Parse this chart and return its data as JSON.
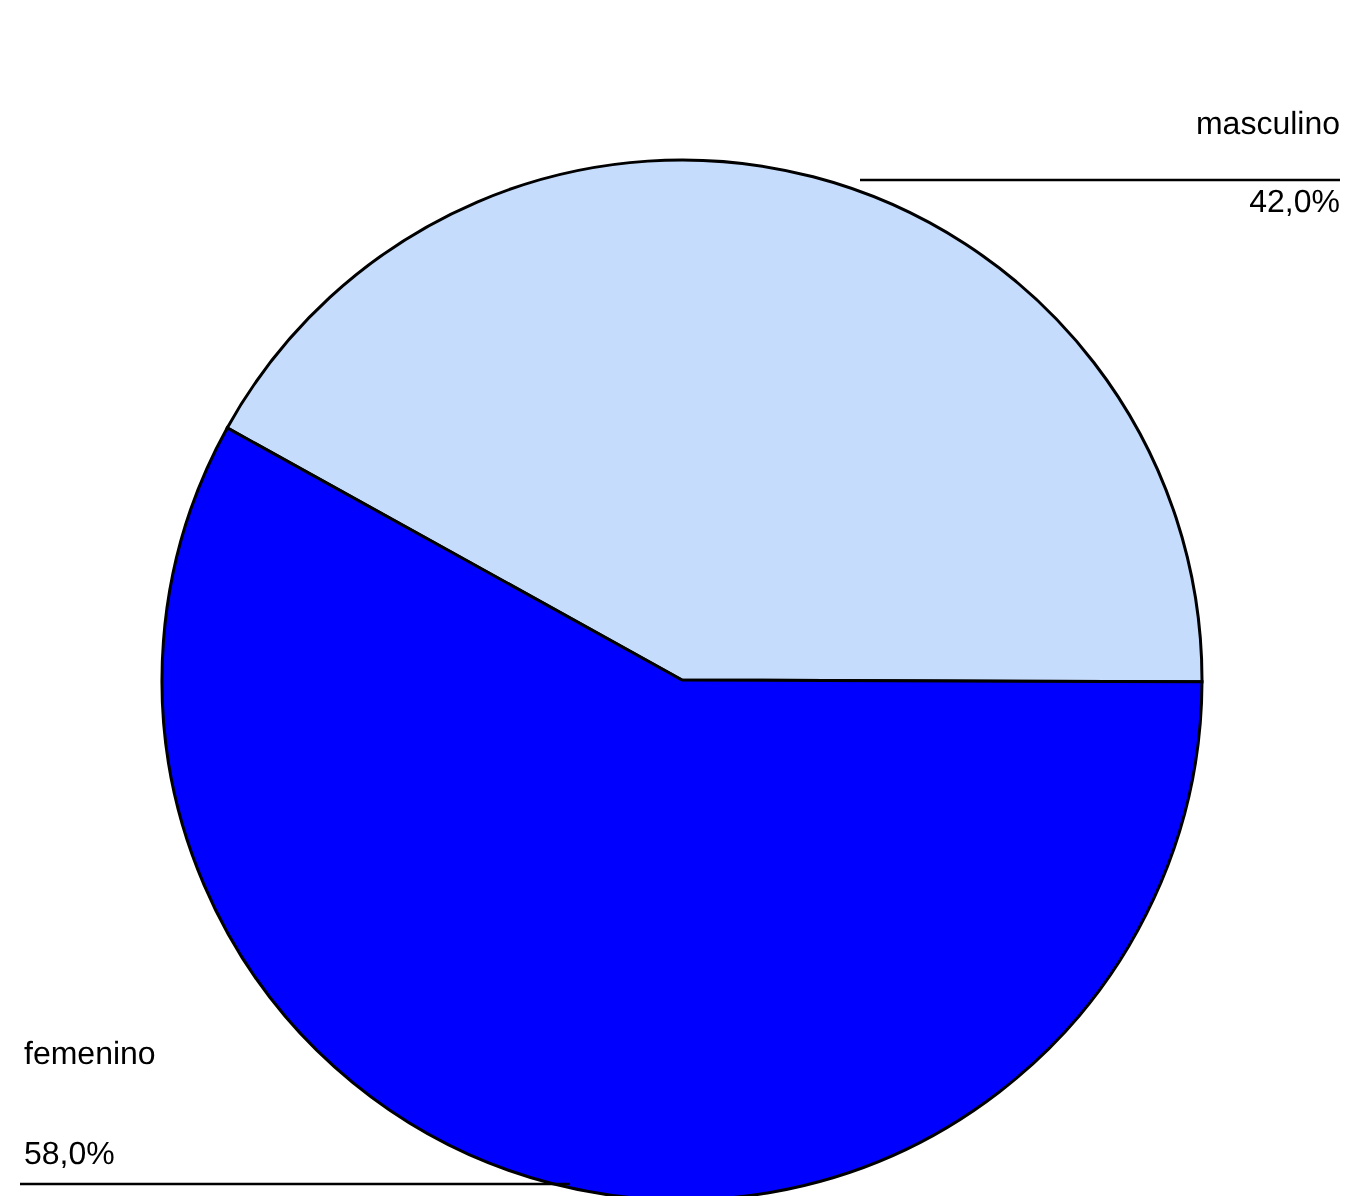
{
  "chart_data": {
    "type": "pie",
    "categories": [
      "masculino",
      "femenino"
    ],
    "values": [
      42.0,
      58.0
    ],
    "colors": [
      "#c6dcfc",
      "#0000ff"
    ],
    "value_labels": [
      "42,0%",
      "58,0%"
    ]
  }
}
